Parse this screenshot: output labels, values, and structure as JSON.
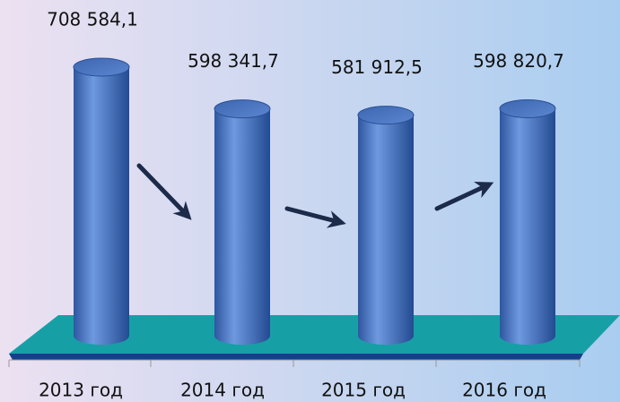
{
  "chart_data": {
    "type": "bar",
    "categories": [
      "2013 год",
      "2014 год",
      "2015 год",
      "2016 год"
    ],
    "values": [
      708584.1,
      598341.7,
      581912.5,
      598820.7
    ],
    "value_labels": [
      "708 584,1",
      "598 341,7",
      "581 912,5",
      "598 820,7"
    ],
    "color": "#4a78c8"
  }
}
